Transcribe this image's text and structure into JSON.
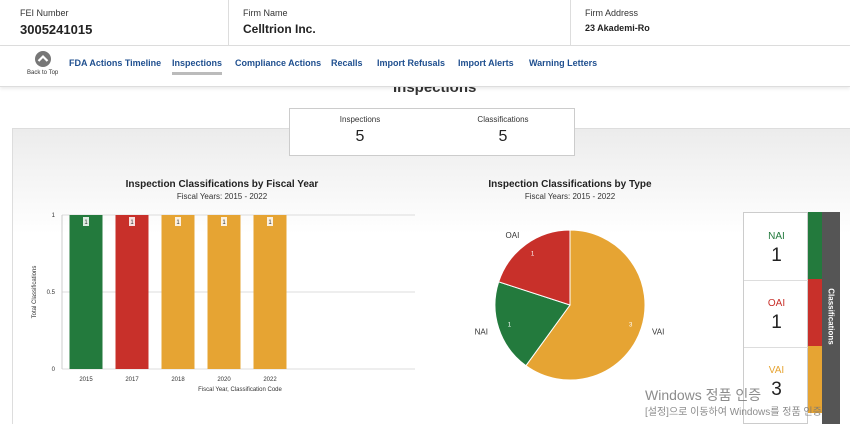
{
  "header": {
    "fields": [
      {
        "label": "FEI Number",
        "value": "3005241015"
      },
      {
        "label": "Firm Name",
        "value": "Celltrion Inc."
      },
      {
        "label": "Firm Address",
        "value": "23 Akademi-Ro"
      }
    ]
  },
  "nav": {
    "back_to_top": "Back to Top",
    "tabs": [
      "FDA Actions Timeline",
      "Inspections",
      "Compliance Actions",
      "Recalls",
      "Import Refusals",
      "Import Alerts",
      "Warning Letters"
    ],
    "active": "Inspections"
  },
  "section_title": "Inspections",
  "summary": [
    {
      "label": "Inspections",
      "value": "5"
    },
    {
      "label": "Classifications",
      "value": "5"
    }
  ],
  "chart_data": [
    {
      "type": "bar",
      "title": "Inspection Classifications by Fiscal Year",
      "subtitle": "Fiscal Years: 2015 - 2022",
      "y_label": "Total Classifications",
      "x_label": "Fiscal Year, Classification Code",
      "categories": [
        "2015",
        "2017",
        "2018",
        "2020",
        "2022"
      ],
      "values": [
        1,
        1,
        1,
        1,
        1
      ],
      "colors": [
        "#237a3d",
        "#c8302a",
        "#e6a433",
        "#e6a433",
        "#e6a433"
      ],
      "ylim": [
        0,
        1
      ],
      "yticks": [
        0,
        0.5,
        1
      ],
      "grid": true
    },
    {
      "type": "pie",
      "title": "Inspection Classifications by Type",
      "subtitle": "Fiscal Years: 2015 - 2022",
      "categories": [
        "VAI",
        "NAI",
        "OAI"
      ],
      "values": [
        3,
        1,
        1
      ],
      "colors": [
        "#e6a433",
        "#237a3d",
        "#c8302a"
      ]
    }
  ],
  "side_panel": {
    "title": "Classifications",
    "items": [
      {
        "label": "NAI",
        "value": "1",
        "color": "#237a3d"
      },
      {
        "label": "OAI",
        "value": "1",
        "color": "#c8302a"
      },
      {
        "label": "VAI",
        "value": "3",
        "color": "#e6a433"
      }
    ]
  },
  "watermark": [
    "Windows 정품 인증",
    "[설정]으로 이동하여 Windows를 정품 인증"
  ]
}
